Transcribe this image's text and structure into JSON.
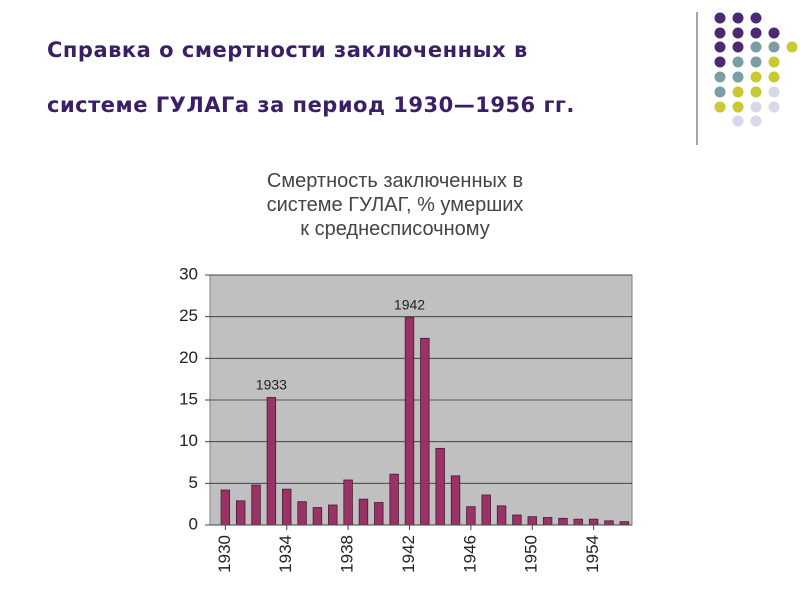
{
  "slide": {
    "title": [
      "Справка о смертности заключенных в",
      "системе ГУЛАГа за период 1930—1956 гг."
    ]
  },
  "chart_data": {
    "type": "bar",
    "title": [
      "Смертность заключенных в",
      "системе ГУЛАГ, % умерших",
      "к среднесписочному"
    ],
    "x": [
      1930,
      1931,
      1932,
      1933,
      1934,
      1935,
      1936,
      1937,
      1938,
      1939,
      1940,
      1941,
      1942,
      1943,
      1944,
      1945,
      1946,
      1947,
      1948,
      1949,
      1950,
      1951,
      1952,
      1953,
      1954,
      1955,
      1956
    ],
    "values": [
      4.2,
      2.9,
      4.8,
      15.3,
      4.3,
      2.8,
      2.1,
      2.4,
      5.4,
      3.1,
      2.7,
      6.1,
      24.9,
      22.4,
      9.2,
      5.9,
      2.2,
      3.6,
      2.3,
      1.2,
      1.0,
      0.9,
      0.8,
      0.7,
      0.7,
      0.5,
      0.4
    ],
    "color": "#993366",
    "xlim": [
      1929,
      1956.5
    ],
    "xticks": [
      1930,
      1934,
      1938,
      1942,
      1946,
      1950,
      1954
    ],
    "ylim": [
      0,
      30
    ],
    "yticks": [
      0,
      5,
      10,
      15,
      20,
      25,
      30
    ],
    "grid": true,
    "annotations": [
      {
        "text": "1933",
        "x": 1933
      },
      {
        "text": "1942",
        "x": 1942
      }
    ]
  }
}
